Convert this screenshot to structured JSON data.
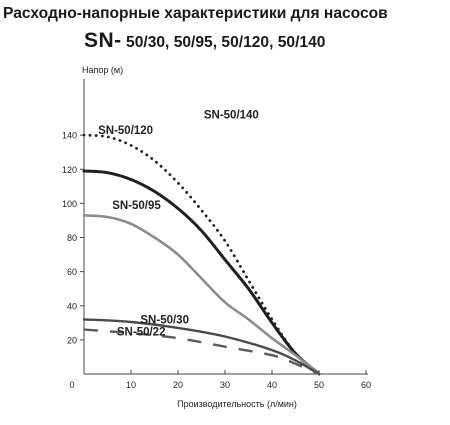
{
  "header": {
    "line1": "Расходно-напорные характеристики для насосов",
    "prefix": "SN-",
    "models": "50/30, 50/95, 50/120, 50/140"
  },
  "chart_data": {
    "type": "line",
    "title": "Расходно-напорные характеристики для насосов SN- 50/30, 50/95, 50/120, 50/140",
    "xlabel": "Производительность (л/мин)",
    "ylabel": "Напор (м)",
    "xlim": [
      0,
      60
    ],
    "ylim": [
      0,
      160
    ],
    "x_ticks": [
      "0",
      "10",
      "20",
      "30",
      "40",
      "50",
      "60"
    ],
    "y_ticks": [
      "20",
      "40",
      "60",
      "80",
      "100",
      "120",
      "140"
    ],
    "grid": false,
    "colors": {
      "sn140": "#222222",
      "sn120": "#1f1f1f",
      "sn95": "#8c8c8c",
      "sn30": "#4a4a4a",
      "sn22": "#5a5a5a",
      "axis": "#444444",
      "text": "#222222"
    },
    "series": [
      {
        "key": "sn140",
        "name": "SN-50/140",
        "style": "dotted",
        "x": [
          0,
          5,
          10,
          15,
          20,
          25,
          30,
          35,
          40,
          45,
          50
        ],
        "y": [
          140,
          139,
          134,
          125,
          112,
          96,
          78,
          55,
          32,
          12,
          0
        ]
      },
      {
        "key": "sn120",
        "name": "SN-50/120",
        "style": "solid",
        "x": [
          0,
          5,
          10,
          15,
          20,
          25,
          30,
          35,
          40,
          45,
          50
        ],
        "y": [
          119,
          118,
          114,
          107,
          97,
          84,
          67,
          50,
          30,
          12,
          0
        ]
      },
      {
        "key": "sn95",
        "name": "SN-50/95",
        "style": "solid",
        "x": [
          0,
          5,
          10,
          15,
          20,
          25,
          30,
          35,
          40,
          45,
          50
        ],
        "y": [
          93,
          92,
          88,
          80,
          70,
          56,
          42,
          32,
          21,
          11,
          0
        ]
      },
      {
        "key": "sn30",
        "name": "SN-50/30",
        "style": "solid",
        "x": [
          0,
          10,
          20,
          30,
          40,
          45,
          50
        ],
        "y": [
          32,
          30.5,
          27,
          22,
          14,
          8,
          0
        ]
      },
      {
        "key": "sn22",
        "name": "SN-50/22",
        "style": "dashed",
        "x": [
          0,
          10,
          20,
          30,
          40,
          45,
          50
        ],
        "y": [
          26,
          24,
          21,
          16,
          11,
          6,
          0
        ]
      }
    ]
  }
}
